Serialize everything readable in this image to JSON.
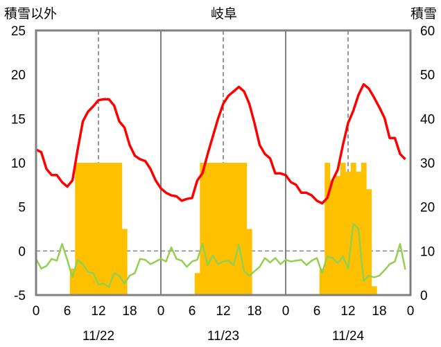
{
  "chart_data": {
    "type": "bar",
    "title": "岐阜",
    "left_axis_label": "積雪以外",
    "right_axis_label": "積雪",
    "left_ylim": [
      -5,
      25
    ],
    "left_yticks": [
      "-5",
      "0",
      "5",
      "10",
      "15",
      "20",
      "25"
    ],
    "right_ylim": [
      0,
      60
    ],
    "right_yticks": [
      "0",
      "10",
      "20",
      "30",
      "40",
      "50",
      "60"
    ],
    "xlim": [
      0,
      72
    ],
    "hour_ticks": [
      "0",
      "6",
      "12",
      "18",
      "0",
      "6",
      "12",
      "18",
      "0",
      "6",
      "12",
      "18",
      "0"
    ],
    "date_labels": [
      "11/22",
      "11/23",
      "11/24"
    ],
    "grid": "dashed vertical at 12h, solid day separators",
    "colors": {
      "snow_bars": "#ffc000",
      "red_line": "#ff0000",
      "green_line": "#92d050",
      "purple_line": "#7030a0",
      "frame": "#808080"
    },
    "series": [
      {
        "type": "bar",
        "axis": "right",
        "color": "#ffc000",
        "x": [
          7,
          8,
          9,
          10,
          11,
          12,
          13,
          14,
          15,
          16,
          17,
          31,
          32,
          33,
          34,
          35,
          36,
          37,
          38,
          39,
          40,
          41,
          55,
          56,
          57,
          58,
          59,
          60,
          61,
          62,
          63,
          64,
          65
        ],
        "values": [
          6,
          30,
          30,
          30,
          30,
          30,
          30,
          30,
          30,
          30,
          15,
          5,
          30,
          30,
          30,
          30,
          30,
          30,
          30,
          30,
          30,
          15,
          6,
          30,
          26,
          27,
          30,
          28,
          30,
          28,
          30,
          24,
          2
        ]
      },
      {
        "type": "line",
        "axis": "left",
        "color": "#ff0000",
        "x": [
          0,
          1,
          2,
          3,
          4,
          5,
          6,
          7,
          8,
          9,
          10,
          11,
          12,
          13,
          14,
          15,
          16,
          17,
          18,
          19,
          20,
          21,
          22,
          23,
          24,
          25,
          26,
          27,
          28,
          29,
          30,
          31,
          32,
          33,
          34,
          35,
          36,
          37,
          38,
          39,
          40,
          41,
          42,
          43,
          44,
          45,
          46,
          47,
          48,
          49,
          50,
          51,
          52,
          53,
          54,
          55,
          56,
          57,
          58,
          59,
          60,
          61,
          62,
          63,
          64,
          65,
          66,
          67,
          68,
          69,
          70,
          71
        ],
        "values": [
          11.5,
          11.2,
          9.3,
          8.6,
          8.6,
          7.8,
          7.3,
          8.0,
          11.5,
          14.7,
          15.8,
          16.4,
          17.1,
          17.2,
          17.2,
          16.5,
          14.7,
          14.0,
          12.0,
          10.8,
          10.4,
          10.2,
          9.3,
          8.0,
          7.1,
          6.6,
          6.3,
          6.2,
          5.7,
          5.9,
          6.0,
          8.0,
          8.8,
          11.0,
          13.0,
          15.0,
          16.7,
          17.6,
          18.1,
          18.6,
          18.1,
          16.7,
          14.5,
          12.0,
          11.0,
          10.5,
          8.8,
          8.8,
          8.6,
          7.8,
          7.5,
          6.6,
          6.6,
          6.3,
          5.7,
          5.4,
          6.0,
          8.0,
          9.2,
          12.0,
          14.5,
          15.9,
          17.7,
          18.9,
          18.4,
          17.4,
          16.3,
          15.1,
          12.8,
          12.8,
          11.0,
          10.4
        ]
      },
      {
        "type": "line",
        "axis": "left",
        "color": "#92d050",
        "x": [
          0,
          1,
          2,
          3,
          4,
          5,
          6,
          7,
          8,
          9,
          10,
          11,
          12,
          13,
          14,
          15,
          16,
          17,
          18,
          19,
          20,
          21,
          22,
          23,
          24,
          25,
          26,
          27,
          28,
          29,
          30,
          31,
          32,
          33,
          34,
          35,
          36,
          37,
          38,
          39,
          40,
          41,
          42,
          43,
          44,
          45,
          46,
          47,
          48,
          49,
          50,
          51,
          52,
          53,
          54,
          55,
          56,
          57,
          58,
          59,
          60,
          61,
          62,
          63,
          64,
          65,
          66,
          67,
          68,
          69,
          70,
          71
        ],
        "values": [
          -0.9,
          -2.0,
          -1.7,
          -0.9,
          -1.1,
          0.8,
          -1.0,
          -3.0,
          -1.0,
          -1.5,
          -2.4,
          -2.5,
          -3.8,
          -3.7,
          -4.1,
          -2.5,
          -2.8,
          -3.7,
          -2.8,
          -2.5,
          -0.9,
          -1.0,
          -1.5,
          -1.2,
          -0.9,
          -1.2,
          0.4,
          -0.9,
          -1.1,
          -1.8,
          -1.2,
          -1.0,
          0.8,
          -1.6,
          -0.5,
          -1.5,
          -1.2,
          -1.1,
          -1.6,
          0.7,
          -2.3,
          -2.8,
          -2.3,
          -1.8,
          -0.8,
          -1.3,
          -0.8,
          -1.5,
          -1.0,
          -1.2,
          -1.1,
          -1.0,
          -1.6,
          -1.1,
          -0.8,
          -2.5,
          -0.6,
          -0.8,
          -1.4,
          -0.6,
          -2.0,
          3.1,
          2.5,
          -3.4,
          -2.8,
          -3.0,
          -2.8,
          -2.2,
          -1.5,
          -1.2,
          0.8,
          -2.1
        ]
      },
      {
        "type": "line",
        "axis": "left",
        "color": "#7030a0",
        "x": [
          0,
          72
        ],
        "values": [
          -5,
          -5
        ]
      }
    ]
  }
}
